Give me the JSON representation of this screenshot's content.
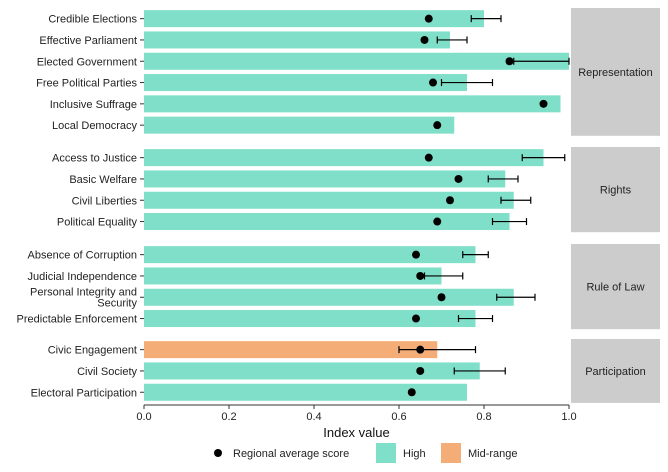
{
  "chart_data": {
    "type": "bar",
    "xlabel": "Index value",
    "xlim": [
      0,
      1
    ],
    "xticks": [
      "0.0",
      "0.2",
      "0.4",
      "0.6",
      "0.8",
      "1.0"
    ],
    "tick_values": [
      0,
      0.2,
      0.4,
      0.6,
      0.8,
      1.0
    ],
    "colors": {
      "High": "#7fdfc8",
      "Mid-range": "#f5ad78",
      "panel_strip": "#cccccc",
      "point": "#000000"
    },
    "legend": {
      "position": "bottom",
      "items": [
        {
          "label": "Regional average score",
          "kind": "point"
        },
        {
          "label": "High",
          "kind": "fill",
          "level": "High"
        },
        {
          "label": "Mid-range",
          "kind": "fill",
          "level": "Mid-range"
        }
      ]
    },
    "panels": [
      {
        "name": "Representation",
        "rows": [
          {
            "label": "Credible Elections",
            "value": 0.8,
            "level": "High",
            "avg": 0.67,
            "err": [
              0.77,
              0.84
            ]
          },
          {
            "label": "Effective Parliament",
            "value": 0.72,
            "level": "High",
            "avg": 0.66,
            "err": [
              0.69,
              0.76
            ]
          },
          {
            "label": "Elected Government",
            "value": 1.0,
            "level": "High",
            "avg": 0.86,
            "err": [
              0.87,
              1.0
            ]
          },
          {
            "label": "Free Political Parties",
            "value": 0.76,
            "level": "High",
            "avg": 0.68,
            "err": [
              0.7,
              0.82
            ]
          },
          {
            "label": "Inclusive Suffrage",
            "value": 0.98,
            "level": "High",
            "avg": 0.94,
            "err": null
          },
          {
            "label": "Local Democracy",
            "value": 0.73,
            "level": "High",
            "avg": 0.69,
            "err": null
          }
        ]
      },
      {
        "name": "Rights",
        "rows": [
          {
            "label": "Access to Justice",
            "value": 0.94,
            "level": "High",
            "avg": 0.67,
            "err": [
              0.89,
              0.99
            ]
          },
          {
            "label": "Basic Welfare",
            "value": 0.85,
            "level": "High",
            "avg": 0.74,
            "err": [
              0.81,
              0.88
            ]
          },
          {
            "label": "Civil Liberties",
            "value": 0.87,
            "level": "High",
            "avg": 0.72,
            "err": [
              0.84,
              0.91
            ]
          },
          {
            "label": "Political Equality",
            "value": 0.86,
            "level": "High",
            "avg": 0.69,
            "err": [
              0.82,
              0.9
            ]
          }
        ]
      },
      {
        "name": "Rule of Law",
        "rows": [
          {
            "label": "Absence of Corruption",
            "value": 0.78,
            "level": "High",
            "avg": 0.64,
            "err": [
              0.75,
              0.81
            ]
          },
          {
            "label": "Judicial Independence",
            "value": 0.7,
            "level": "High",
            "avg": 0.65,
            "err": [
              0.66,
              0.75
            ]
          },
          {
            "label": "Personal Integrity and Security",
            "label_lines": [
              "Personal Integrity and",
              "Security"
            ],
            "value": 0.87,
            "level": "High",
            "avg": 0.7,
            "err": [
              0.83,
              0.92
            ]
          },
          {
            "label": "Predictable Enforcement",
            "value": 0.78,
            "level": "High",
            "avg": 0.64,
            "err": [
              0.74,
              0.82
            ]
          }
        ]
      },
      {
        "name": "Participation",
        "rows": [
          {
            "label": "Civic Engagement",
            "value": 0.69,
            "level": "Mid-range",
            "avg": 0.65,
            "err": [
              0.6,
              0.78
            ]
          },
          {
            "label": "Civil Society",
            "value": 0.79,
            "level": "High",
            "avg": 0.65,
            "err": [
              0.73,
              0.85
            ]
          },
          {
            "label": "Electoral Participation",
            "value": 0.76,
            "level": "High",
            "avg": 0.63,
            "err": null
          }
        ]
      }
    ]
  }
}
